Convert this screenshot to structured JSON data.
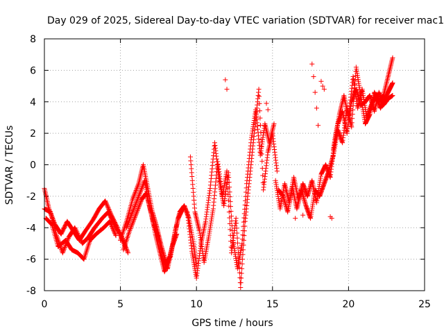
{
  "chart_data": {
    "type": "scatter",
    "title": "Day 029 of 2025, Sidereal Day-to-day VTEC variation (SDTVAR) for receiver mac1",
    "xlabel": "GPS time / hours",
    "ylabel": "SDTVAR / TECUs",
    "xlim": [
      0,
      25
    ],
    "ylim": [
      -8,
      8
    ],
    "xticks": [
      0,
      5,
      10,
      15,
      20,
      25
    ],
    "yticks": [
      -8,
      -6,
      -4,
      -2,
      0,
      2,
      4,
      6,
      8
    ],
    "grid": true,
    "marker": "+",
    "series": [
      {
        "name": "SDTVAR",
        "color": "#ff0000",
        "tracks": [
          {
            "x": [
              0,
              0.3,
              0.7,
              1.1,
              1.5,
              1.9,
              2.3,
              2.7,
              3.2,
              3.6,
              4.0,
              4.4,
              4.8,
              5.3
            ],
            "y": [
              -1.5,
              -2.8,
              -3.8,
              -4.4,
              -3.6,
              -4.2,
              -4.8,
              -4.2,
              -3.5,
              -2.8,
              -2.3,
              -3.2,
              -4.0,
              -5.2
            ]
          },
          {
            "x": [
              0,
              0.4,
              0.8,
              1.2,
              1.6,
              2.0,
              2.5,
              2.9,
              3.3,
              3.8,
              4.2,
              4.6,
              5.1,
              5.5
            ],
            "y": [
              -2.8,
              -3.0,
              -4.5,
              -5.6,
              -4.6,
              -4.0,
              -5.0,
              -4.6,
              -4.0,
              -3.4,
              -3.0,
              -3.8,
              -4.6,
              -5.6
            ]
          },
          {
            "x": [
              0.1,
              0.5,
              0.9,
              1.4,
              1.8,
              2.2,
              2.6,
              3.0,
              3.4,
              3.9,
              4.3,
              4.7
            ],
            "y": [
              -3.4,
              -3.8,
              -5.2,
              -4.8,
              -5.4,
              -5.6,
              -6.0,
              -4.8,
              -4.4,
              -4.0,
              -3.6,
              -4.5
            ]
          },
          {
            "x": [
              5.0,
              5.4,
              5.8,
              6.2,
              6.5,
              6.8,
              7.1,
              7.4,
              7.7,
              8.0,
              8.3,
              8.6,
              8.9,
              9.2,
              9.5,
              9.8,
              10.0
            ],
            "y": [
              -4.8,
              -3.6,
              -2.2,
              -1.2,
              0.0,
              -1.5,
              -3.0,
              -4.0,
              -5.2,
              -6.2,
              -5.8,
              -4.2,
              -3.0,
              -2.6,
              -3.4,
              -5.0,
              -6.4
            ]
          },
          {
            "x": [
              5.2,
              5.6,
              6.0,
              6.4,
              6.7,
              7.0,
              7.3,
              7.6,
              7.9,
              8.2,
              8.5,
              8.8,
              9.1
            ],
            "y": [
              -5.4,
              -4.2,
              -3.2,
              -2.2,
              -1.8,
              -3.0,
              -4.4,
              -5.6,
              -6.8,
              -6.0,
              -4.8,
              -3.4,
              -2.8
            ]
          },
          {
            "x": [
              5.4,
              5.8,
              6.2,
              6.6,
              6.9,
              7.2,
              7.5,
              7.8,
              8.1,
              8.4,
              8.7
            ],
            "y": [
              -4.0,
              -3.0,
              -2.0,
              -1.0,
              -2.6,
              -3.8,
              -4.6,
              -6.0,
              -6.6,
              -5.2,
              -4.4
            ]
          },
          {
            "x": [
              9.4,
              9.7,
              10.0,
              10.3,
              10.6,
              10.9,
              11.2,
              11.5,
              11.8,
              12.1,
              12.4,
              12.7,
              13.0,
              13.3,
              13.6,
              13.9,
              14.2,
              14.5,
              14.8,
              15.1
            ],
            "y": [
              -3.0,
              -5.5,
              -7.2,
              -5.0,
              -3.6,
              -1.5,
              1.4,
              -1.0,
              -2.6,
              -0.5,
              -4.8,
              -6.6,
              -5.0,
              -1.2,
              1.6,
              3.5,
              0.6,
              2.6,
              1.4,
              2.6
            ]
          },
          {
            "x": [
              9.6,
              9.9,
              10.2,
              10.5,
              10.8,
              11.1,
              11.4,
              11.7,
              12.0,
              12.3,
              12.6,
              12.9,
              13.2,
              13.5,
              13.8,
              14.1,
              14.4,
              14.7,
              15.0,
              15.3
            ],
            "y": [
              0.5,
              -3.0,
              -4.2,
              -6.2,
              -4.6,
              -2.8,
              0.2,
              -2.0,
              -0.4,
              -5.6,
              -3.4,
              -7.8,
              -3.6,
              -0.8,
              2.0,
              4.8,
              -1.6,
              0.8,
              2.0,
              -0.4
            ]
          },
          {
            "x": [
              15.2,
              15.5,
              15.8,
              16.1,
              16.4,
              16.7,
              17.0,
              17.3,
              17.6,
              17.9,
              18.2,
              18.5,
              18.8,
              19.1,
              19.4,
              19.7,
              20.0,
              20.3,
              20.6,
              20.9,
              21.2,
              21.5,
              21.8,
              22.1,
              22.4,
              22.7,
              22.9
            ],
            "y": [
              -1.0,
              -2.8,
              -1.2,
              -2.4,
              -0.8,
              -2.2,
              -1.2,
              -2.0,
              -1.0,
              -2.4,
              -0.6,
              0.0,
              -0.8,
              1.6,
              3.2,
              4.4,
              3.0,
              5.6,
              3.6,
              4.8,
              3.0,
              3.8,
              4.4,
              3.6,
              4.2,
              4.8,
              5.2
            ]
          },
          {
            "x": [
              15.4,
              15.7,
              16.0,
              16.3,
              16.6,
              16.9,
              17.2,
              17.5,
              17.8,
              18.1,
              18.4,
              18.7,
              19.0,
              19.3,
              19.6,
              19.9,
              20.2,
              20.5,
              20.8,
              21.1,
              21.4,
              21.7,
              22.0,
              22.3,
              22.6,
              22.9
            ],
            "y": [
              -1.6,
              -2.0,
              -3.0,
              -1.4,
              -2.8,
              -1.6,
              -2.6,
              -3.4,
              -1.6,
              -2.0,
              -1.2,
              -0.4,
              0.6,
              2.2,
              1.4,
              3.6,
              2.4,
              6.2,
              4.4,
              2.6,
              3.2,
              4.6,
              4.0,
              4.4,
              5.6,
              6.8
            ]
          },
          {
            "x": [
              19.0,
              19.3,
              19.6,
              19.9,
              20.2,
              20.5,
              20.8,
              21.1,
              21.4,
              21.7,
              22.0,
              22.3,
              22.6,
              22.9
            ],
            "y": [
              1.0,
              2.6,
              3.4,
              2.0,
              4.0,
              4.8,
              3.8,
              4.0,
              4.4,
              3.4,
              4.6,
              3.8,
              4.2,
              4.4
            ]
          }
        ],
        "points": [
          {
            "x": [
              11.9,
              12.0
            ],
            "y": [
              5.4,
              4.8
            ]
          },
          {
            "x": [
              14.6,
              14.7
            ],
            "y": [
              3.9,
              3.5
            ]
          },
          {
            "x": [
              17.6,
              17.7,
              17.8,
              17.9,
              18.0
            ],
            "y": [
              6.4,
              5.6,
              4.6,
              3.6,
              2.5
            ]
          },
          {
            "x": [
              18.2,
              18.3,
              18.4
            ],
            "y": [
              5.3,
              5.0,
              4.8
            ]
          },
          {
            "x": [
              17.0,
              16.5
            ],
            "y": [
              -3.2,
              -3.4
            ]
          },
          {
            "x": [
              18.8,
              18.9
            ],
            "y": [
              -3.3,
              -3.4
            ]
          }
        ]
      }
    ]
  }
}
